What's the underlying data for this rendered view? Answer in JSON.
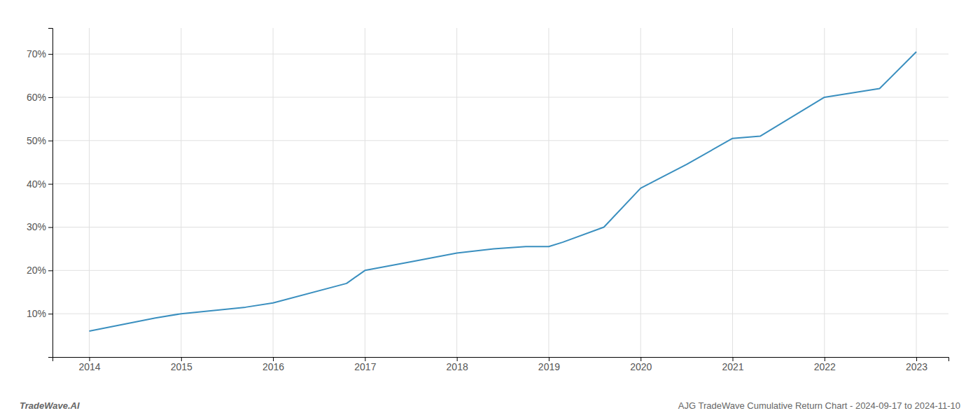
{
  "chart_data": {
    "type": "line",
    "title": "AJG TradeWave Cumulative Return Chart - 2024-09-17 to 2024-11-10",
    "annotations": [
      "TradeWave.AI"
    ],
    "x": [
      2014,
      2014.72,
      2015,
      2015.7,
      2016,
      2016.8,
      2017,
      2017.5,
      2018,
      2018.4,
      2018.75,
      2019.0,
      2019.15,
      2019.6,
      2020.0,
      2020.5,
      2021.0,
      2021.3,
      2022.0,
      2022.6,
      2023.0
    ],
    "values": [
      6.0,
      9.0,
      10.0,
      11.5,
      12.5,
      17.0,
      20.0,
      22.0,
      24.0,
      25.0,
      25.5,
      25.5,
      26.5,
      30.0,
      39.0,
      44.5,
      50.5,
      51.0,
      60.0,
      62.0,
      70.5
    ],
    "color": "#3a8fbf",
    "xlim": [
      2013.6,
      2023.35
    ],
    "ylim": [
      0,
      76
    ],
    "xticks": [
      2014,
      2015,
      2016,
      2017,
      2018,
      2019,
      2020,
      2021,
      2022,
      2023
    ],
    "yticks": [
      {
        "value": 10,
        "label": "10%"
      },
      {
        "value": 20,
        "label": "20%"
      },
      {
        "value": 30,
        "label": "30%"
      },
      {
        "value": 40,
        "label": "40%"
      },
      {
        "value": 50,
        "label": "50%"
      },
      {
        "value": 60,
        "label": "60%"
      },
      {
        "value": 70,
        "label": "70%"
      }
    ],
    "grid": true
  }
}
